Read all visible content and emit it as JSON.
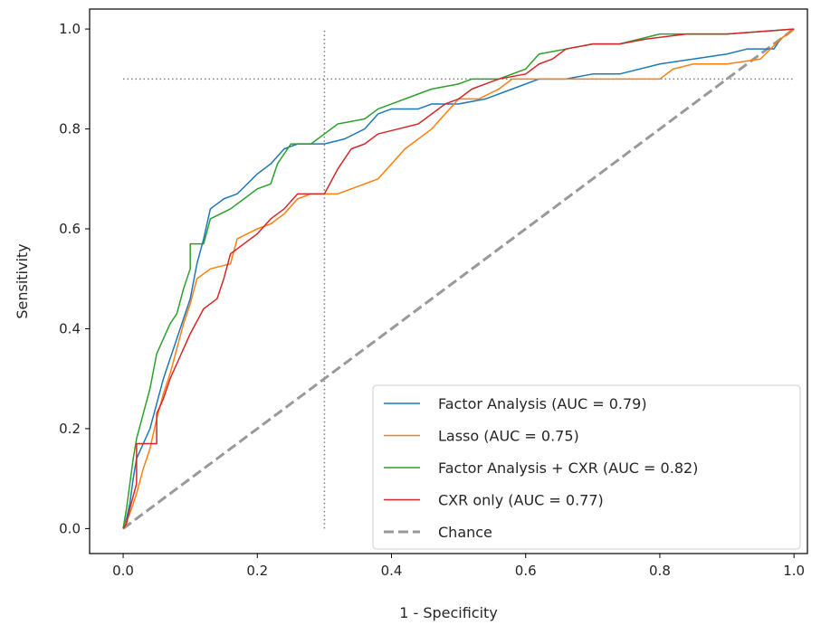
{
  "chart_data": {
    "type": "line",
    "title": "",
    "xlabel": "1 - Specificity",
    "ylabel": "Sensitivity",
    "xlim": [
      -0.05,
      1.02
    ],
    "ylim": [
      -0.05,
      1.04
    ],
    "xticks": [
      "0.0",
      "0.2",
      "0.4",
      "0.6",
      "0.8",
      "1.0"
    ],
    "yticks": [
      "0.0",
      "0.2",
      "0.4",
      "0.6",
      "0.8",
      "1.0"
    ],
    "grid": false,
    "legend_position": "lower-right",
    "reference_lines": [
      {
        "orientation": "vertical",
        "value": 0.3,
        "range": [
          0.0,
          1.0
        ],
        "color": "#7f7f7f",
        "style": "dotted"
      },
      {
        "orientation": "horizontal",
        "value": 0.9,
        "range": [
          0.0,
          1.0
        ],
        "color": "#7f7f7f",
        "style": "dotted"
      }
    ],
    "series": [
      {
        "name": "Factor Analysis (AUC = 0.79)",
        "color": "#1f77b4",
        "points": [
          [
            0,
            0
          ],
          [
            0.005,
            0.02
          ],
          [
            0.01,
            0.05
          ],
          [
            0.015,
            0.1
          ],
          [
            0.02,
            0.14
          ],
          [
            0.03,
            0.17
          ],
          [
            0.04,
            0.2
          ],
          [
            0.05,
            0.25
          ],
          [
            0.06,
            0.3
          ],
          [
            0.07,
            0.34
          ],
          [
            0.08,
            0.38
          ],
          [
            0.09,
            0.42
          ],
          [
            0.1,
            0.46
          ],
          [
            0.11,
            0.53
          ],
          [
            0.12,
            0.58
          ],
          [
            0.13,
            0.64
          ],
          [
            0.15,
            0.66
          ],
          [
            0.17,
            0.67
          ],
          [
            0.2,
            0.71
          ],
          [
            0.22,
            0.73
          ],
          [
            0.24,
            0.76
          ],
          [
            0.26,
            0.77
          ],
          [
            0.3,
            0.77
          ],
          [
            0.33,
            0.78
          ],
          [
            0.36,
            0.8
          ],
          [
            0.38,
            0.83
          ],
          [
            0.4,
            0.84
          ],
          [
            0.44,
            0.84
          ],
          [
            0.46,
            0.85
          ],
          [
            0.5,
            0.85
          ],
          [
            0.54,
            0.86
          ],
          [
            0.58,
            0.88
          ],
          [
            0.62,
            0.9
          ],
          [
            0.66,
            0.9
          ],
          [
            0.7,
            0.91
          ],
          [
            0.74,
            0.91
          ],
          [
            0.8,
            0.93
          ],
          [
            0.85,
            0.94
          ],
          [
            0.9,
            0.95
          ],
          [
            0.93,
            0.96
          ],
          [
            0.97,
            0.96
          ],
          [
            0.98,
            0.98
          ],
          [
            1.0,
            1.0
          ]
        ]
      },
      {
        "name": "Lasso (AUC = 0.75)",
        "color": "#ff7f0e",
        "points": [
          [
            0,
            0
          ],
          [
            0.01,
            0.03
          ],
          [
            0.02,
            0.07
          ],
          [
            0.03,
            0.12
          ],
          [
            0.04,
            0.16
          ],
          [
            0.05,
            0.22
          ],
          [
            0.06,
            0.27
          ],
          [
            0.07,
            0.31
          ],
          [
            0.08,
            0.36
          ],
          [
            0.09,
            0.41
          ],
          [
            0.1,
            0.45
          ],
          [
            0.11,
            0.5
          ],
          [
            0.13,
            0.52
          ],
          [
            0.16,
            0.53
          ],
          [
            0.17,
            0.58
          ],
          [
            0.2,
            0.6
          ],
          [
            0.22,
            0.61
          ],
          [
            0.24,
            0.63
          ],
          [
            0.26,
            0.66
          ],
          [
            0.28,
            0.67
          ],
          [
            0.3,
            0.67
          ],
          [
            0.32,
            0.67
          ],
          [
            0.34,
            0.68
          ],
          [
            0.36,
            0.69
          ],
          [
            0.38,
            0.7
          ],
          [
            0.4,
            0.73
          ],
          [
            0.42,
            0.76
          ],
          [
            0.44,
            0.78
          ],
          [
            0.46,
            0.8
          ],
          [
            0.48,
            0.83
          ],
          [
            0.5,
            0.86
          ],
          [
            0.53,
            0.86
          ],
          [
            0.56,
            0.88
          ],
          [
            0.58,
            0.9
          ],
          [
            0.62,
            0.9
          ],
          [
            0.66,
            0.9
          ],
          [
            0.7,
            0.9
          ],
          [
            0.8,
            0.9
          ],
          [
            0.82,
            0.92
          ],
          [
            0.85,
            0.93
          ],
          [
            0.9,
            0.93
          ],
          [
            0.95,
            0.94
          ],
          [
            0.98,
            0.98
          ],
          [
            1.0,
            1.0
          ]
        ]
      },
      {
        "name": "Factor Analysis + CXR (AUC = 0.82)",
        "color": "#2ca02c",
        "points": [
          [
            0,
            0
          ],
          [
            0.005,
            0.04
          ],
          [
            0.01,
            0.09
          ],
          [
            0.015,
            0.14
          ],
          [
            0.02,
            0.18
          ],
          [
            0.03,
            0.23
          ],
          [
            0.04,
            0.28
          ],
          [
            0.05,
            0.35
          ],
          [
            0.06,
            0.38
          ],
          [
            0.07,
            0.41
          ],
          [
            0.08,
            0.43
          ],
          [
            0.09,
            0.48
          ],
          [
            0.1,
            0.52
          ],
          [
            0.1,
            0.57
          ],
          [
            0.12,
            0.57
          ],
          [
            0.13,
            0.62
          ],
          [
            0.16,
            0.64
          ],
          [
            0.18,
            0.66
          ],
          [
            0.2,
            0.68
          ],
          [
            0.22,
            0.69
          ],
          [
            0.23,
            0.73
          ],
          [
            0.25,
            0.77
          ],
          [
            0.28,
            0.77
          ],
          [
            0.3,
            0.79
          ],
          [
            0.32,
            0.81
          ],
          [
            0.36,
            0.82
          ],
          [
            0.38,
            0.84
          ],
          [
            0.4,
            0.85
          ],
          [
            0.44,
            0.87
          ],
          [
            0.46,
            0.88
          ],
          [
            0.5,
            0.89
          ],
          [
            0.52,
            0.9
          ],
          [
            0.56,
            0.9
          ],
          [
            0.6,
            0.92
          ],
          [
            0.62,
            0.95
          ],
          [
            0.66,
            0.96
          ],
          [
            0.7,
            0.97
          ],
          [
            0.74,
            0.97
          ],
          [
            0.8,
            0.99
          ],
          [
            0.85,
            0.99
          ],
          [
            0.9,
            0.99
          ],
          [
            1.0,
            1.0
          ]
        ]
      },
      {
        "name": "CXR only (AUC = 0.77)",
        "color": "#d62728",
        "points": [
          [
            0,
            0
          ],
          [
            0.005,
            0.01
          ],
          [
            0.01,
            0.04
          ],
          [
            0.02,
            0.09
          ],
          [
            0.02,
            0.17
          ],
          [
            0.05,
            0.17
          ],
          [
            0.05,
            0.23
          ],
          [
            0.06,
            0.26
          ],
          [
            0.07,
            0.3
          ],
          [
            0.08,
            0.33
          ],
          [
            0.1,
            0.39
          ],
          [
            0.12,
            0.44
          ],
          [
            0.14,
            0.46
          ],
          [
            0.15,
            0.5
          ],
          [
            0.16,
            0.55
          ],
          [
            0.18,
            0.57
          ],
          [
            0.2,
            0.59
          ],
          [
            0.22,
            0.62
          ],
          [
            0.24,
            0.64
          ],
          [
            0.26,
            0.67
          ],
          [
            0.3,
            0.67
          ],
          [
            0.32,
            0.72
          ],
          [
            0.34,
            0.76
          ],
          [
            0.36,
            0.77
          ],
          [
            0.38,
            0.79
          ],
          [
            0.41,
            0.8
          ],
          [
            0.44,
            0.81
          ],
          [
            0.46,
            0.83
          ],
          [
            0.48,
            0.85
          ],
          [
            0.5,
            0.86
          ],
          [
            0.52,
            0.88
          ],
          [
            0.54,
            0.89
          ],
          [
            0.56,
            0.9
          ],
          [
            0.6,
            0.91
          ],
          [
            0.62,
            0.93
          ],
          [
            0.64,
            0.94
          ],
          [
            0.66,
            0.96
          ],
          [
            0.7,
            0.97
          ],
          [
            0.74,
            0.97
          ],
          [
            0.78,
            0.98
          ],
          [
            0.84,
            0.99
          ],
          [
            0.9,
            0.99
          ],
          [
            1.0,
            1.0
          ]
        ]
      },
      {
        "name": "Chance",
        "color": "#999999",
        "style": "dashed",
        "points": [
          [
            0,
            0
          ],
          [
            1,
            1
          ]
        ]
      }
    ]
  }
}
